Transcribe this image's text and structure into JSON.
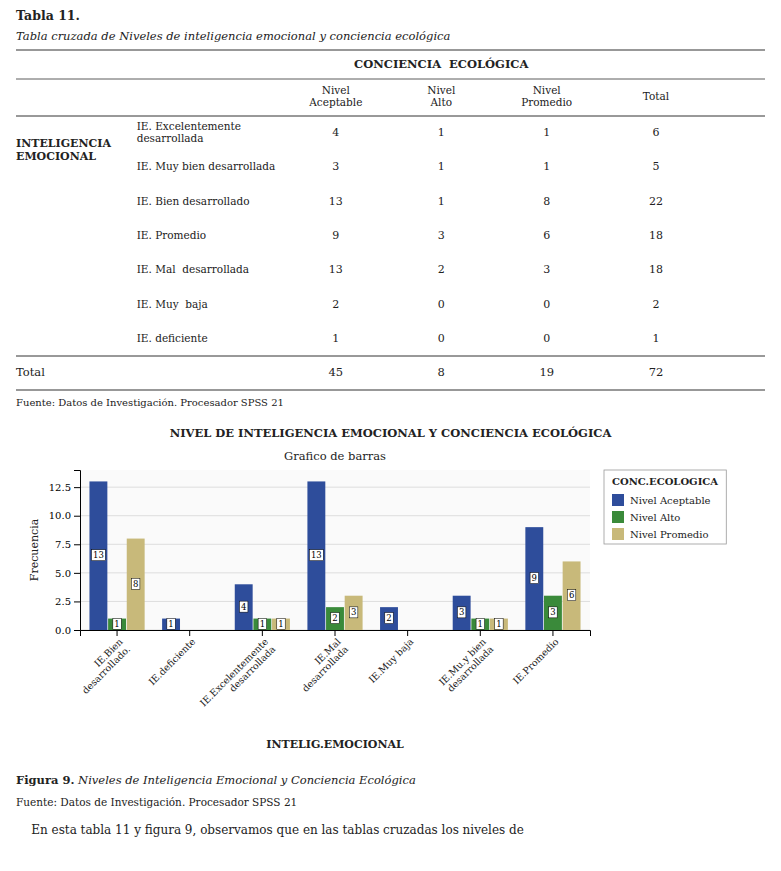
{
  "chart_data": [
    {
      "type": "table",
      "title": "Tabla 11.",
      "subtitle": "Tabla cruzada de Niveles de inteligencia emocional y conciencia ecológica",
      "column_group": "CONCIENCIA  ECOLÓGICA",
      "columns": [
        "Nivel\nAceptable",
        "Nivel\nAlto",
        "Nivel\nPromedio",
        "Total"
      ],
      "row_group": "INTELIGENCIA\nEMOCIONAL",
      "rows": [
        "IE. Excelentemente\ndesarrollada",
        "IE. Muy bien desarrollada",
        "IE. Bien desarrollado",
        "IE. Promedio",
        "IE. Mal  desarrollada",
        "IE. Muy  baja",
        "IE. deficiente"
      ],
      "cells": [
        [
          4,
          1,
          1,
          6
        ],
        [
          3,
          1,
          1,
          5
        ],
        [
          13,
          1,
          8,
          22
        ],
        [
          9,
          3,
          6,
          18
        ],
        [
          13,
          2,
          3,
          18
        ],
        [
          2,
          0,
          0,
          2
        ],
        [
          1,
          0,
          0,
          1
        ]
      ],
      "total_label": "Total",
      "totals": [
        45,
        8,
        19,
        72
      ],
      "source": "Fuente: Datos de Investigación. Procesador SPSS 21"
    },
    {
      "type": "bar",
      "title": "NIVEL DE INTELIGENCIA EMOCIONAL Y CONCIENCIA ECOLÓGICA",
      "subtitle": "Grafico de barras",
      "xlabel": "INTELIG.EMOCIONAL",
      "ylabel": "Frecuencia",
      "categories": [
        "IE.Bien\ndesarrollado.",
        "IE.deficiente",
        "IE.Excelentemente\ndesarrollada",
        "IE.Mal\ndesarrollada",
        "IE.Muy baja",
        "IE.Mu.y bien\ndesarrollada",
        "IE.Promedio"
      ],
      "series": [
        {
          "name": "Nivel Aceptable",
          "color": "#2e4d9b",
          "values": [
            13,
            1,
            4,
            13,
            2,
            3,
            9
          ]
        },
        {
          "name": "Nivel Alto",
          "color": "#3a8a3a",
          "values": [
            1,
            0,
            1,
            2,
            0,
            1,
            3
          ]
        },
        {
          "name": "Nivel Promedio",
          "color": "#c8b97a",
          "values": [
            8,
            0,
            1,
            3,
            0,
            1,
            6
          ]
        }
      ],
      "ylim": [
        0,
        14
      ],
      "yticks": [
        {
          "value": 0,
          "label": "0.0"
        },
        2.5,
        {
          "value": 5,
          "label": "5.0"
        },
        7.5,
        {
          "value": 10,
          "label": "10.0"
        },
        12.5
      ],
      "grid": true,
      "legend": "upper right",
      "legend_title": "CONC.ECOLOGICA",
      "data_labels": true,
      "caption": "Figura 9.",
      "caption_title": " Niveles de Inteligencia Emocional y Conciencia Ecológica",
      "source": "Fuente: Datos de Investigación. Procesador SPSS 21",
      "text": "    En esta tabla 11 y figura 9, observamos que en las tablas cruzadas los niveles de"
    }
  ]
}
